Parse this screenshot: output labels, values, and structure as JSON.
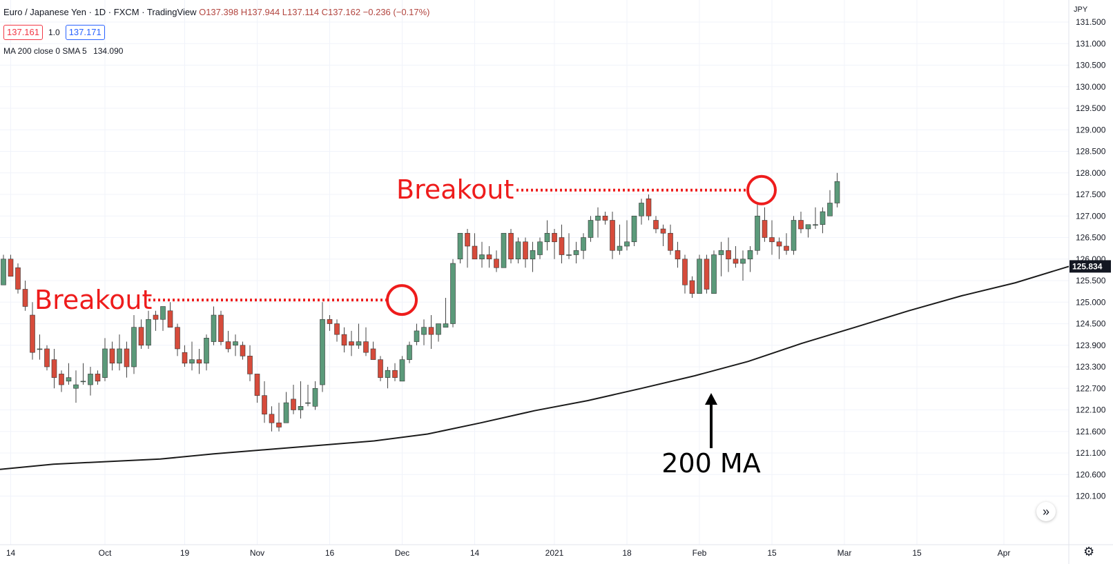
{
  "header": {
    "symbol": "Euro / Japanese Yen",
    "interval": "1D",
    "exchange": "FXCM",
    "platform": "TradingView",
    "ohlc": "O137.398 H137.944 L137.114 C137.162 −0.236 (−0.17%)"
  },
  "price_boxes": {
    "sell": "137.161",
    "spread": "1.0",
    "buy": "137.171"
  },
  "ma_legend": {
    "label": "MA 200 close 0 SMA 5",
    "value": "134.090"
  },
  "currency": "JPY",
  "colors": {
    "up": "#5b9a7a",
    "down": "#d64b3b",
    "wick": "#444444",
    "ma": "#1a1a1a",
    "annotation": "#ee1c1c",
    "grid": "#f0f3fa",
    "last_price_bg": "#131722"
  },
  "chart_data": {
    "type": "candlestick",
    "y_ticks": [
      131.5,
      131.0,
      130.5,
      130.0,
      129.5,
      129.0,
      128.5,
      128.0,
      127.5,
      127.0,
      126.5,
      126.0,
      125.5,
      125.0,
      124.5,
      123.9,
      123.3,
      122.7,
      122.1,
      121.6,
      121.1,
      120.6,
      120.1
    ],
    "y_tick_labels": [
      "131.500",
      "131.000",
      "130.500",
      "130.000",
      "129.500",
      "129.000",
      "128.500",
      "128.000",
      "127.500",
      "127.000",
      "126.500",
      "126.000",
      "125.500",
      "125.000",
      "124.500",
      "123.900",
      "123.300",
      "122.700",
      "122.100",
      "121.600",
      "121.100",
      "120.600",
      "120.100"
    ],
    "x_labels": [
      {
        "label": "14",
        "bar": 1
      },
      {
        "label": "Oct",
        "bar": 14
      },
      {
        "label": "19",
        "bar": 25
      },
      {
        "label": "Nov",
        "bar": 35
      },
      {
        "label": "16",
        "bar": 45
      },
      {
        "label": "Dec",
        "bar": 55
      },
      {
        "label": "14",
        "bar": 65
      },
      {
        "label": "2021",
        "bar": 76
      },
      {
        "label": "18",
        "bar": 86
      },
      {
        "label": "Feb",
        "bar": 96
      },
      {
        "label": "15",
        "bar": 106
      },
      {
        "label": "Mar",
        "bar": 116
      },
      {
        "label": "15",
        "bar": 126
      },
      {
        "label": "Apr",
        "bar": 138
      }
    ],
    "candles": [
      [
        125.4,
        126.1,
        125.4,
        126.0
      ],
      [
        126.0,
        126.1,
        125.6,
        125.6
      ],
      [
        125.8,
        125.9,
        125.2,
        125.3
      ],
      [
        125.3,
        125.5,
        124.8,
        124.9
      ],
      [
        124.7,
        125.0,
        123.5,
        123.7
      ],
      [
        123.8,
        124.2,
        123.5,
        123.8
      ],
      [
        123.8,
        123.9,
        123.2,
        123.3
      ],
      [
        123.5,
        123.8,
        122.7,
        123.0
      ],
      [
        123.1,
        123.2,
        122.6,
        122.8
      ],
      [
        122.9,
        123.4,
        122.8,
        123.0
      ],
      [
        122.7,
        123.2,
        122.3,
        122.8
      ],
      [
        122.9,
        123.4,
        122.8,
        122.9
      ],
      [
        122.8,
        123.3,
        122.5,
        123.1
      ],
      [
        123.1,
        123.2,
        122.8,
        122.9
      ],
      [
        123.0,
        124.1,
        122.9,
        123.8
      ],
      [
        123.8,
        124.0,
        123.2,
        123.4
      ],
      [
        123.4,
        124.2,
        123.2,
        123.8
      ],
      [
        123.8,
        124.0,
        123.0,
        123.3
      ],
      [
        123.3,
        124.7,
        123.1,
        124.4
      ],
      [
        124.4,
        124.6,
        123.8,
        123.9
      ],
      [
        123.9,
        124.8,
        123.8,
        124.6
      ],
      [
        124.7,
        124.8,
        124.3,
        124.6
      ],
      [
        124.6,
        124.9,
        124.3,
        124.9
      ],
      [
        124.8,
        125.0,
        124.4,
        124.4
      ],
      [
        124.4,
        124.5,
        123.6,
        123.8
      ],
      [
        123.7,
        123.9,
        123.3,
        123.4
      ],
      [
        123.4,
        124.0,
        123.2,
        123.5
      ],
      [
        123.5,
        123.8,
        123.1,
        123.4
      ],
      [
        123.4,
        124.2,
        123.2,
        124.1
      ],
      [
        124.0,
        124.9,
        123.9,
        124.7
      ],
      [
        124.7,
        124.8,
        123.9,
        124.0
      ],
      [
        124.0,
        124.3,
        123.7,
        123.8
      ],
      [
        123.9,
        124.2,
        123.6,
        124.0
      ],
      [
        123.9,
        124.0,
        123.5,
        123.6
      ],
      [
        123.6,
        123.9,
        122.9,
        123.1
      ],
      [
        123.1,
        123.1,
        122.3,
        122.5
      ],
      [
        122.5,
        122.9,
        121.8,
        122.0
      ],
      [
        122.0,
        122.2,
        121.6,
        121.8
      ],
      [
        121.8,
        122.3,
        121.6,
        121.7
      ],
      [
        121.8,
        122.6,
        121.8,
        122.3
      ],
      [
        122.4,
        122.8,
        122.0,
        122.1
      ],
      [
        122.1,
        122.9,
        121.9,
        122.2
      ],
      [
        122.3,
        122.8,
        122.2,
        122.3
      ],
      [
        122.2,
        122.9,
        122.1,
        122.7
      ],
      [
        122.8,
        125.0,
        122.6,
        124.6
      ],
      [
        124.6,
        124.7,
        124.3,
        124.5
      ],
      [
        124.5,
        124.6,
        124.0,
        124.2
      ],
      [
        124.2,
        124.4,
        123.7,
        123.9
      ],
      [
        124.0,
        124.3,
        123.6,
        123.9
      ],
      [
        123.9,
        124.5,
        123.8,
        124.0
      ],
      [
        124.0,
        124.4,
        123.6,
        123.7
      ],
      [
        123.8,
        124.0,
        123.5,
        123.5
      ],
      [
        123.5,
        123.6,
        122.9,
        123.0
      ],
      [
        123.0,
        123.3,
        122.7,
        123.2
      ],
      [
        123.2,
        123.4,
        122.9,
        123.0
      ],
      [
        122.9,
        123.6,
        122.9,
        123.5
      ],
      [
        123.5,
        124.0,
        123.4,
        123.9
      ],
      [
        124.0,
        124.5,
        123.9,
        124.3
      ],
      [
        124.2,
        124.6,
        123.9,
        124.4
      ],
      [
        124.4,
        124.7,
        123.8,
        124.2
      ],
      [
        124.2,
        124.5,
        124.0,
        124.5
      ],
      [
        124.4,
        125.1,
        124.4,
        124.5
      ],
      [
        124.5,
        126.0,
        124.4,
        125.9
      ],
      [
        126.0,
        126.6,
        125.9,
        126.6
      ],
      [
        126.6,
        126.7,
        125.8,
        126.3
      ],
      [
        126.3,
        126.6,
        126.0,
        126.0
      ],
      [
        126.0,
        126.4,
        125.8,
        126.1
      ],
      [
        126.1,
        126.3,
        125.8,
        126.0
      ],
      [
        126.0,
        126.2,
        125.7,
        125.8
      ],
      [
        125.8,
        126.6,
        125.8,
        126.6
      ],
      [
        126.6,
        126.7,
        125.9,
        126.0
      ],
      [
        126.0,
        126.5,
        125.9,
        126.4
      ],
      [
        126.4,
        126.5,
        125.8,
        126.0
      ],
      [
        126.0,
        126.4,
        125.7,
        126.2
      ],
      [
        126.1,
        126.5,
        126.0,
        126.4
      ],
      [
        126.4,
        126.9,
        126.2,
        126.6
      ],
      [
        126.6,
        126.7,
        126.0,
        126.4
      ],
      [
        126.5,
        126.8,
        125.9,
        126.1
      ],
      [
        126.1,
        126.6,
        126.0,
        126.1
      ],
      [
        126.1,
        126.4,
        125.9,
        126.2
      ],
      [
        126.2,
        126.6,
        126.0,
        126.5
      ],
      [
        126.5,
        127.0,
        126.4,
        126.9
      ],
      [
        126.9,
        127.2,
        126.5,
        127.0
      ],
      [
        127.0,
        127.1,
        126.8,
        126.9
      ],
      [
        126.9,
        127.1,
        126.0,
        126.2
      ],
      [
        126.2,
        126.8,
        126.1,
        126.3
      ],
      [
        126.3,
        126.9,
        126.2,
        126.4
      ],
      [
        126.4,
        127.0,
        126.3,
        127.0
      ],
      [
        127.0,
        127.4,
        126.8,
        127.3
      ],
      [
        127.4,
        127.5,
        126.9,
        127.0
      ],
      [
        126.9,
        127.0,
        126.6,
        126.7
      ],
      [
        126.7,
        126.8,
        126.3,
        126.6
      ],
      [
        126.6,
        126.8,
        126.1,
        126.2
      ],
      [
        126.2,
        126.4,
        125.8,
        126.0
      ],
      [
        126.0,
        126.1,
        125.2,
        125.4
      ],
      [
        125.5,
        125.6,
        125.1,
        125.2
      ],
      [
        125.2,
        126.1,
        125.2,
        126.0
      ],
      [
        126.0,
        126.1,
        125.2,
        125.3
      ],
      [
        125.2,
        126.2,
        125.2,
        126.1
      ],
      [
        126.1,
        126.4,
        125.6,
        126.2
      ],
      [
        126.2,
        126.5,
        125.7,
        126.0
      ],
      [
        126.0,
        126.3,
        125.8,
        125.9
      ],
      [
        125.9,
        126.2,
        125.5,
        126.0
      ],
      [
        126.0,
        126.3,
        125.7,
        126.2
      ],
      [
        126.2,
        127.3,
        126.1,
        127.0
      ],
      [
        126.9,
        127.2,
        126.4,
        126.5
      ],
      [
        126.5,
        126.9,
        126.1,
        126.4
      ],
      [
        126.4,
        126.5,
        126.0,
        126.3
      ],
      [
        126.3,
        126.6,
        126.1,
        126.2
      ],
      [
        126.2,
        127.0,
        126.1,
        126.9
      ],
      [
        126.9,
        127.1,
        126.6,
        126.7
      ],
      [
        126.7,
        126.8,
        126.5,
        126.8
      ],
      [
        126.8,
        127.2,
        126.7,
        126.8
      ],
      [
        126.8,
        127.2,
        126.6,
        127.1
      ],
      [
        127.0,
        127.6,
        127.0,
        127.3
      ],
      [
        127.3,
        128.0,
        127.2,
        127.8
      ]
    ],
    "ma200": [
      [
        0,
        120.72
      ],
      [
        10,
        120.84
      ],
      [
        20,
        120.9
      ],
      [
        30,
        120.96
      ],
      [
        40,
        121.08
      ],
      [
        50,
        121.18
      ],
      [
        60,
        121.28
      ],
      [
        70,
        121.38
      ],
      [
        80,
        121.54
      ],
      [
        90,
        121.8
      ],
      [
        100,
        122.08
      ],
      [
        110,
        122.36
      ],
      [
        120,
        122.7
      ],
      [
        130,
        123.05
      ],
      [
        140,
        123.45
      ],
      [
        150,
        123.95
      ],
      [
        160,
        124.4
      ],
      [
        170,
        124.8
      ],
      [
        180,
        125.15
      ],
      [
        190,
        125.45
      ],
      [
        200,
        125.83
      ]
    ],
    "ma200_x_scale": "bar-fraction",
    "last_price_label": "125.834",
    "annotations": [
      {
        "text": "Breakout",
        "level": 125.05
      },
      {
        "text": "Breakout",
        "level": 127.6
      },
      {
        "text": "200 MA"
      }
    ]
  }
}
